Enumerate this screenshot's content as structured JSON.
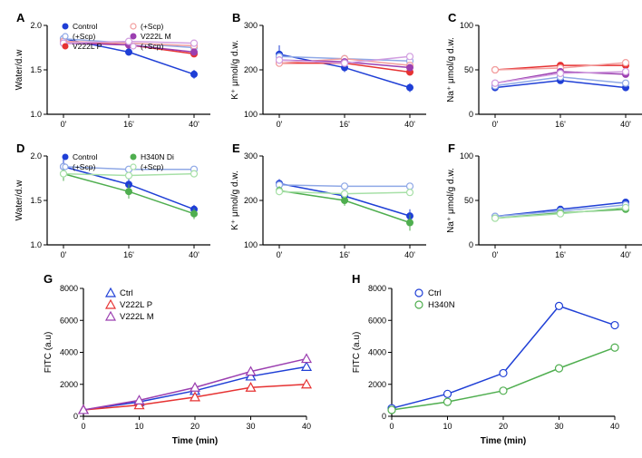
{
  "panels": {
    "A": {
      "label": "A",
      "ylabel": "Water/d.w",
      "xlabel": "",
      "ylim": [
        1.0,
        2.0
      ],
      "yticks": [
        1.0,
        1.5,
        2.0
      ],
      "xticks": [
        "0'",
        "16'",
        "40'"
      ],
      "legend": [
        {
          "label": "Control",
          "color": "#1f3fd6",
          "marker": "circle-filled"
        },
        {
          "label": "(+Scp)",
          "color": "#8fa8e6",
          "marker": "circle-open"
        },
        {
          "label": "V222L P",
          "color": "#e63232",
          "marker": "circle-filled"
        },
        {
          "label": "(+Scp)",
          "color": "#f29e9e",
          "marker": "circle-open"
        },
        {
          "label": "V222L M",
          "color": "#9b3fb0",
          "marker": "circle-filled"
        },
        {
          "label": "(+Scp)",
          "color": "#d29ee0",
          "marker": "circle-open"
        }
      ],
      "series": [
        {
          "color": "#1f3fd6",
          "marker": "circle-filled",
          "y": [
            1.85,
            1.7,
            1.45
          ],
          "err": [
            0.05,
            0.04,
            0.05
          ]
        },
        {
          "color": "#8fa8e6",
          "marker": "circle-open",
          "y": [
            1.85,
            1.8,
            1.75
          ]
        },
        {
          "color": "#e63232",
          "marker": "circle-filled",
          "y": [
            1.82,
            1.78,
            1.68
          ]
        },
        {
          "color": "#f29e9e",
          "marker": "circle-open",
          "y": [
            1.82,
            1.8,
            1.77
          ]
        },
        {
          "color": "#9b3fb0",
          "marker": "circle-filled",
          "y": [
            1.8,
            1.78,
            1.7
          ]
        },
        {
          "color": "#d29ee0",
          "marker": "circle-open",
          "y": [
            1.8,
            1.82,
            1.8
          ]
        }
      ]
    },
    "B": {
      "label": "B",
      "ylabel": "K⁺ μmol/g d.w.",
      "ylim": [
        100,
        300
      ],
      "yticks": [
        100,
        200,
        300
      ],
      "xticks": [
        "0'",
        "16'",
        "40'"
      ],
      "series": [
        {
          "color": "#1f3fd6",
          "marker": "circle-filled",
          "y": [
            235,
            205,
            160
          ],
          "err": [
            20,
            10,
            10
          ]
        },
        {
          "color": "#8fa8e6",
          "marker": "circle-open",
          "y": [
            230,
            225,
            220
          ]
        },
        {
          "color": "#e63232",
          "marker": "circle-filled",
          "y": [
            215,
            215,
            195
          ]
        },
        {
          "color": "#f29e9e",
          "marker": "circle-open",
          "y": [
            215,
            225,
            210
          ]
        },
        {
          "color": "#9b3fb0",
          "marker": "circle-filled",
          "y": [
            222,
            218,
            205
          ]
        },
        {
          "color": "#d29ee0",
          "marker": "circle-open",
          "y": [
            222,
            215,
            230
          ]
        }
      ]
    },
    "C": {
      "label": "C",
      "ylabel": "Na⁺ μmol/g d.w.",
      "ylim": [
        0,
        100
      ],
      "yticks": [
        0,
        50,
        100
      ],
      "xticks": [
        "0'",
        "16'",
        "40'"
      ],
      "series": [
        {
          "color": "#1f3fd6",
          "marker": "circle-filled",
          "y": [
            30,
            38,
            30
          ]
        },
        {
          "color": "#8fa8e6",
          "marker": "circle-open",
          "y": [
            32,
            42,
            35
          ]
        },
        {
          "color": "#e63232",
          "marker": "circle-filled",
          "y": [
            50,
            55,
            55
          ]
        },
        {
          "color": "#f29e9e",
          "marker": "circle-open",
          "y": [
            50,
            52,
            58
          ]
        },
        {
          "color": "#9b3fb0",
          "marker": "circle-filled",
          "y": [
            35,
            48,
            45
          ]
        },
        {
          "color": "#d29ee0",
          "marker": "circle-open",
          "y": [
            35,
            46,
            48
          ]
        }
      ]
    },
    "D": {
      "label": "D",
      "ylabel": "Water/d.w",
      "ylim": [
        1.0,
        2.0
      ],
      "yticks": [
        1.0,
        1.5,
        2.0
      ],
      "xticks": [
        "0'",
        "16'",
        "40'"
      ],
      "legend": [
        {
          "label": "Control",
          "color": "#1f3fd6",
          "marker": "circle-filled"
        },
        {
          "label": "(+Scp)",
          "color": "#8fa8e6",
          "marker": "circle-open"
        },
        {
          "label": "H340N Di",
          "color": "#4fae4f",
          "marker": "circle-filled"
        },
        {
          "label": "(+Scp)",
          "color": "#a7e0a7",
          "marker": "circle-open"
        }
      ],
      "series": [
        {
          "color": "#1f3fd6",
          "marker": "circle-filled",
          "y": [
            1.88,
            1.68,
            1.4
          ],
          "err": [
            0.1,
            0.06,
            0.05
          ]
        },
        {
          "color": "#8fa8e6",
          "marker": "circle-open",
          "y": [
            1.88,
            1.85,
            1.85
          ]
        },
        {
          "color": "#4fae4f",
          "marker": "circle-filled",
          "y": [
            1.8,
            1.6,
            1.35
          ],
          "err": [
            0.08,
            0.08,
            0.06
          ]
        },
        {
          "color": "#a7e0a7",
          "marker": "circle-open",
          "y": [
            1.8,
            1.78,
            1.8
          ]
        }
      ]
    },
    "E": {
      "label": "E",
      "ylabel": "K⁺ μmol/g d.w.",
      "ylim": [
        100,
        300
      ],
      "yticks": [
        100,
        200,
        300
      ],
      "xticks": [
        "0'",
        "16'",
        "40'"
      ],
      "series": [
        {
          "color": "#1f3fd6",
          "marker": "circle-filled",
          "y": [
            238,
            210,
            165
          ],
          "err": [
            10,
            10,
            15
          ]
        },
        {
          "color": "#8fa8e6",
          "marker": "circle-open",
          "y": [
            235,
            232,
            232
          ]
        },
        {
          "color": "#4fae4f",
          "marker": "circle-filled",
          "y": [
            222,
            200,
            150
          ],
          "err": [
            10,
            12,
            18
          ]
        },
        {
          "color": "#a7e0a7",
          "marker": "circle-open",
          "y": [
            220,
            215,
            218
          ]
        }
      ]
    },
    "F": {
      "label": "F",
      "ylabel": "Na⁺ μmol/g d.w.",
      "ylim": [
        0,
        100
      ],
      "yticks": [
        0,
        50,
        100
      ],
      "xticks": [
        "0'",
        "16'",
        "40'"
      ],
      "series": [
        {
          "color": "#1f3fd6",
          "marker": "circle-filled",
          "y": [
            32,
            40,
            48
          ]
        },
        {
          "color": "#8fa8e6",
          "marker": "circle-open",
          "y": [
            32,
            38,
            45
          ]
        },
        {
          "color": "#4fae4f",
          "marker": "circle-filled",
          "y": [
            30,
            36,
            40
          ]
        },
        {
          "color": "#a7e0a7",
          "marker": "circle-open",
          "y": [
            30,
            35,
            42
          ]
        }
      ]
    },
    "G": {
      "label": "G",
      "ylabel": "FITC (a.u)",
      "xlabel": "Time (min)",
      "ylim": [
        0,
        8000
      ],
      "yticks": [
        0,
        2000,
        4000,
        6000,
        8000
      ],
      "xlim": [
        0,
        40
      ],
      "xticks_num": [
        0,
        10,
        20,
        30,
        40
      ],
      "legend": [
        {
          "label": "Ctrl",
          "color": "#1f3fd6",
          "marker": "triangle-open"
        },
        {
          "label": "V222L P",
          "color": "#e63232",
          "marker": "triangle-open"
        },
        {
          "label": "V222L M",
          "color": "#9b3fb0",
          "marker": "triangle-open"
        }
      ],
      "series": [
        {
          "color": "#1f3fd6",
          "marker": "triangle-open",
          "x": [
            0,
            10,
            20,
            30,
            40
          ],
          "y": [
            400,
            900,
            1600,
            2500,
            3100
          ]
        },
        {
          "color": "#e63232",
          "marker": "triangle-open",
          "x": [
            0,
            10,
            20,
            30,
            40
          ],
          "y": [
            400,
            700,
            1200,
            1800,
            2000
          ]
        },
        {
          "color": "#9b3fb0",
          "marker": "triangle-open",
          "x": [
            0,
            10,
            20,
            30,
            40
          ],
          "y": [
            400,
            1000,
            1800,
            2800,
            3600
          ]
        }
      ]
    },
    "H": {
      "label": "H",
      "ylabel": "FITC (a.u)",
      "xlabel": "Time (min)",
      "ylim": [
        0,
        8000
      ],
      "yticks": [
        0,
        2000,
        4000,
        6000,
        8000
      ],
      "xlim": [
        0,
        40
      ],
      "xticks_num": [
        0,
        10,
        20,
        30,
        40
      ],
      "legend": [
        {
          "label": "Ctrl",
          "color": "#1f3fd6",
          "marker": "circle-open"
        },
        {
          "label": "H340N",
          "color": "#4fae4f",
          "marker": "circle-open"
        }
      ],
      "series": [
        {
          "color": "#1f3fd6",
          "marker": "circle-open",
          "x": [
            0,
            10,
            20,
            30,
            40
          ],
          "y": [
            500,
            1400,
            2700,
            6900,
            5700
          ]
        },
        {
          "color": "#4fae4f",
          "marker": "circle-open",
          "x": [
            0,
            10,
            20,
            30,
            40
          ],
          "y": [
            400,
            900,
            1600,
            3000,
            4300
          ]
        }
      ]
    }
  },
  "styling": {
    "background": "#ffffff",
    "axis_color": "#000000",
    "tick_fontsize": 9,
    "label_fontsize": 10,
    "panel_label_fontsize": 13,
    "line_width": 1.5,
    "marker_size": 3.5
  }
}
